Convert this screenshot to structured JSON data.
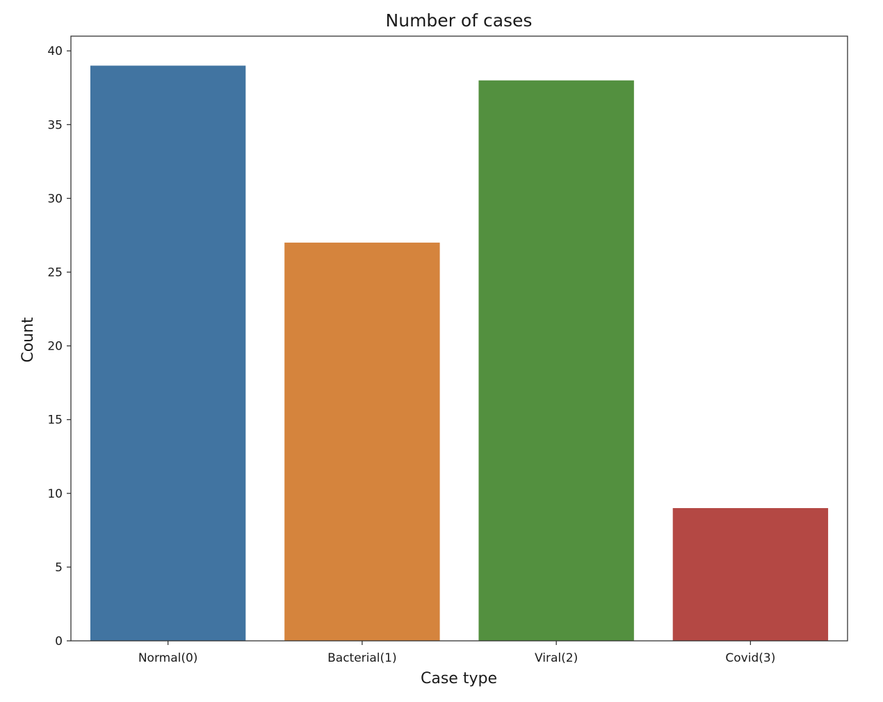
{
  "chart_data": {
    "type": "bar",
    "title": "Number of cases",
    "xlabel": "Case type",
    "ylabel": "Count",
    "categories": [
      "Normal(0)",
      "Bacterial(1)",
      "Viral(2)",
      "Covid(3)"
    ],
    "values": [
      39,
      27,
      38,
      9
    ],
    "colors": [
      "#4174a1",
      "#d5843d",
      "#53903f",
      "#b44844"
    ],
    "ylim": [
      0,
      41
    ],
    "yticks": [
      0,
      5,
      10,
      15,
      20,
      25,
      30,
      35,
      40
    ],
    "grid": false,
    "legend": "none"
  }
}
